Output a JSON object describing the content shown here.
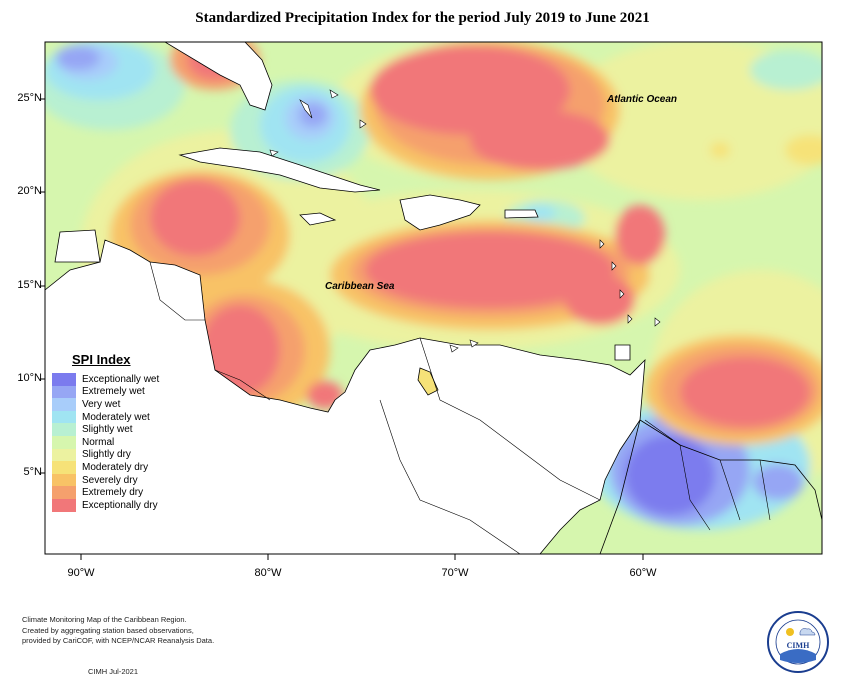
{
  "title": "Standardized Precipitation Index for the period July 2019 to June 2021",
  "legend": {
    "title": "SPI Index",
    "items": [
      {
        "label": "Exceptionally wet",
        "color": "#7b7bee"
      },
      {
        "label": "Extremely wet",
        "color": "#96a6f4"
      },
      {
        "label": "Very wet",
        "color": "#a8cdfa"
      },
      {
        "label": "Moderately wet",
        "color": "#a0e4f2"
      },
      {
        "label": "Slightly wet",
        "color": "#b8f0d2"
      },
      {
        "label": "Normal",
        "color": "#d6f6ae"
      },
      {
        "label": "Slightly dry",
        "color": "#ecf2a0"
      },
      {
        "label": "Moderately dry",
        "color": "#f6e278"
      },
      {
        "label": "Severely dry",
        "color": "#f8c266"
      },
      {
        "label": "Extremely dry",
        "color": "#f5a06d"
      },
      {
        "label": "Exceptionally dry",
        "color": "#f17779"
      }
    ]
  },
  "axes": {
    "lat_labels": [
      "25°N",
      "20°N",
      "15°N",
      "10°N",
      "5°N"
    ],
    "lon_labels": [
      "90°W",
      "80°W",
      "70°W",
      "60°W"
    ]
  },
  "places": {
    "atlantic": "Atlantic Ocean",
    "caribbean": "Caribbean Sea"
  },
  "footer": {
    "line1": "Climate Monitoring Map of the Caribbean Region.",
    "line2": "Created by aggregating station based observations,",
    "line3": "provided by CariCOF, with NCEP/NCAR Reanalysis Data.",
    "credit": "CIMH  Jul-2021"
  },
  "logo": {
    "text": "CIMH"
  }
}
